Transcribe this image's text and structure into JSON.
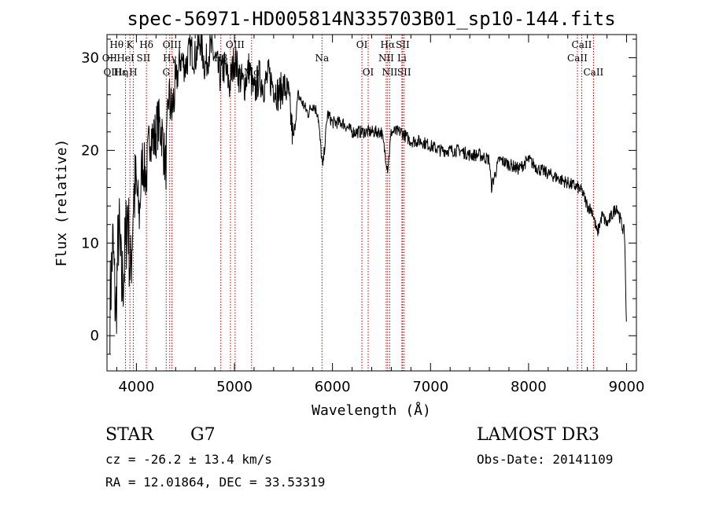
{
  "chart_data": {
    "type": "line",
    "title": "spec-56971-HD005814N335703B01_sp10-144.fits",
    "xlabel": "Wavelength (Å)",
    "ylabel": "Flux (relative)",
    "xlim": [
      3700,
      9100
    ],
    "ylim": [
      -3.8,
      32.5
    ],
    "xticks": [
      4000,
      5000,
      6000,
      7000,
      8000,
      9000
    ],
    "xtick_labels": [
      "4000",
      "5000",
      "6000",
      "7000",
      "8000",
      "9000"
    ],
    "yticks": [
      0,
      10,
      20,
      30
    ],
    "ytick_labels": [
      "0",
      "10",
      "20",
      "30"
    ],
    "series": [
      {
        "x": [
          3730,
          3760,
          3790,
          3820,
          3850,
          3880,
          3910,
          3940,
          3970,
          4000,
          4030,
          4060,
          4100,
          4140,
          4180,
          4220,
          4260,
          4300,
          4330,
          4360,
          4400,
          4450,
          4500,
          4550,
          4600,
          4650,
          4700,
          4750,
          4800,
          4850,
          4900,
          4950,
          5000,
          5050,
          5100,
          5150,
          5200,
          5250,
          5300,
          5350,
          5400,
          5450,
          5500,
          5550,
          5600,
          5650,
          5700,
          5750,
          5800,
          5850,
          5900,
          5950,
          6000,
          6100,
          6200,
          6300,
          6400,
          6500,
          6563,
          6600,
          6700,
          6800,
          6900,
          7000,
          7100,
          7200,
          7300,
          7400,
          7500,
          7600,
          7620,
          7700,
          7800,
          7900,
          8000,
          8100,
          8200,
          8300,
          8400,
          8500,
          8550,
          8600,
          8650,
          8700,
          8750,
          8800,
          8850,
          8900,
          8950,
          8980,
          9000
        ],
        "y": [
          3,
          10,
          2,
          12,
          5,
          8,
          14,
          6,
          15,
          16,
          13,
          19,
          17,
          22,
          21,
          23,
          22,
          18,
          26,
          24,
          27,
          30,
          29,
          31,
          30,
          32,
          29,
          31,
          30,
          28,
          29,
          27,
          30,
          28,
          27,
          29,
          26,
          28,
          27,
          28,
          27,
          26,
          27,
          26,
          21,
          26,
          25,
          24,
          25,
          24,
          18,
          24,
          23,
          23,
          22,
          22,
          22,
          22,
          18,
          22,
          22,
          21,
          21,
          20.5,
          20,
          20,
          20,
          19.5,
          19.5,
          19,
          16,
          19,
          18.5,
          18,
          19,
          18,
          17.5,
          17,
          16.5,
          16,
          15.5,
          14,
          13.5,
          11,
          13,
          12,
          13,
          14,
          12,
          11,
          0
        ]
      }
    ],
    "spectral_lines": [
      {
        "name": "Hθ",
        "x": 3798,
        "row": 0
      },
      {
        "name": "OII",
        "x": 3727,
        "row": 1
      },
      {
        "name": "OIII",
        "x": 3760,
        "row": 2
      },
      {
        "name": "Hε",
        "x": 3835,
        "row": 2
      },
      {
        "name": "K",
        "x": 3934,
        "row": 0
      },
      {
        "name": "HeI",
        "x": 3889,
        "row": 1
      },
      {
        "name": "η",
        "x": 3889,
        "row": 2
      },
      {
        "name": "H",
        "x": 3968,
        "row": 2
      },
      {
        "name": "Hδ",
        "x": 4102,
        "row": 0
      },
      {
        "name": "SII",
        "x": 4072,
        "row": 1
      },
      {
        "name": "OIII",
        "x": 4363,
        "row": 0
      },
      {
        "name": "Hγ",
        "x": 4340,
        "row": 1
      },
      {
        "name": "G",
        "x": 4304,
        "row": 2
      },
      {
        "name": "OIII",
        "x": 5007,
        "row": 0
      },
      {
        "name": "Hβ",
        "x": 4861,
        "row": 1
      },
      {
        "name": "Mg",
        "x": 5175,
        "row": 2
      },
      {
        "name": "Na",
        "x": 5893,
        "row": 1
      },
      {
        "name": "OI",
        "x": 6300,
        "row": 0
      },
      {
        "name": "OI",
        "x": 6364,
        "row": 2
      },
      {
        "name": "Hα",
        "x": 6563,
        "row": 0
      },
      {
        "name": "SII",
        "x": 6716,
        "row": 0
      },
      {
        "name": "NII",
        "x": 6548,
        "row": 1
      },
      {
        "name": "Li",
        "x": 6708,
        "row": 1
      },
      {
        "name": "NII",
        "x": 6584,
        "row": 2
      },
      {
        "name": "SII",
        "x": 6731,
        "row": 2
      },
      {
        "name": "CaII",
        "x": 8542,
        "row": 0
      },
      {
        "name": "CaII",
        "x": 8498,
        "row": 1
      },
      {
        "name": "CaII",
        "x": 8662,
        "row": 2
      }
    ],
    "extra_line_markers": [
      3889,
      3934,
      3968,
      4102,
      4304,
      4340,
      4363,
      4861,
      4959,
      5007,
      5175,
      5893,
      6300,
      6364,
      6548,
      6563,
      6584,
      6708,
      6716,
      6731,
      8498,
      8542,
      8662
    ]
  },
  "info": {
    "object_type": "STAR",
    "subclass": "G7",
    "survey": "LAMOST DR3",
    "cz": "cz = -26.2 ± 13.4 km/s",
    "obs_date": "Obs-Date: 20141109",
    "coords": "RA =  12.01864, DEC =  33.53319"
  },
  "colors": {
    "spectrum": "#000000",
    "line_marker": "#c00000",
    "axes": "#000000"
  }
}
